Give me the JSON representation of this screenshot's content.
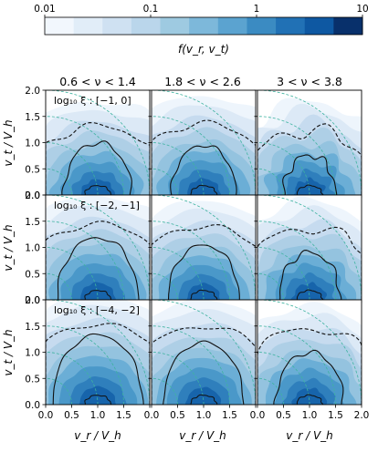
{
  "chart_data": {
    "type": "heatmap",
    "colorbar": {
      "ticks": [
        "0.01",
        "0.1",
        "1",
        "10"
      ],
      "tick_values": [
        0.01,
        0.1,
        1,
        10
      ],
      "scale": "log",
      "label": "f(v_r, v_t)",
      "colors": [
        "#f2f7fd",
        "#e1edf8",
        "#cfe1f2",
        "#bad6eb",
        "#9ecae1",
        "#7db8da",
        "#5ba3d0",
        "#3b8bc2",
        "#2171b5",
        "#0e58a2",
        "#08306b"
      ]
    },
    "columns": [
      {
        "label": "0.6 < ν < 1.4"
      },
      {
        "label": "1.8 < ν < 2.6"
      },
      {
        "label": "3 < ν < 3.8"
      }
    ],
    "rows": [
      {
        "annotation": "log₁₀ ξ : [−1, 0]"
      },
      {
        "annotation": "log₁₀ ξ : [−2, −1]"
      },
      {
        "annotation": "log₁₀ ξ : [−4, −2]"
      }
    ],
    "xlabel": "v_r / V_h",
    "ylabel": "v_t / V_h",
    "xlim": [
      0,
      2.0
    ],
    "ylim": [
      0,
      2.0
    ],
    "xticks": [
      "0.0",
      "0.5",
      "1.0",
      "1.5",
      "2.0"
    ],
    "yticks": [
      "0.0",
      "0.5",
      "1.0",
      "1.5",
      "2.0"
    ],
    "reference_circle_radii": [
      0.5,
      1.0,
      1.5,
      2.0
    ],
    "density_peak": {
      "vr": 1.0,
      "vt": 0.1
    }
  }
}
